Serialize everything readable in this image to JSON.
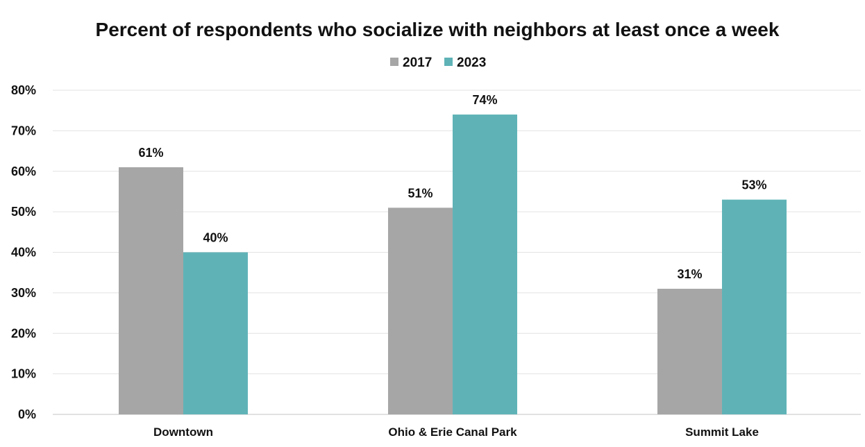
{
  "chart_data": {
    "type": "bar",
    "title": "Percent of respondents who socialize with neighbors at least once a week",
    "categories": [
      "Downtown",
      "Ohio & Erie Canal Park",
      "Summit Lake"
    ],
    "series": [
      {
        "name": "2017",
        "color": "#a6a6a6",
        "values": [
          61,
          51,
          31
        ],
        "labels": [
          "61%",
          "51%",
          "31%"
        ]
      },
      {
        "name": "2023",
        "color": "#5fb3b7",
        "values": [
          40,
          74,
          53
        ],
        "labels": [
          "40%",
          "74%",
          "53%"
        ]
      }
    ],
    "ylim": [
      0,
      80
    ],
    "yticks": [
      "0%",
      "10%",
      "20%",
      "30%",
      "40%",
      "50%",
      "60%",
      "70%",
      "80%"
    ],
    "xlabel": "",
    "ylabel": "",
    "grid": true,
    "legend_position": "top-center"
  }
}
